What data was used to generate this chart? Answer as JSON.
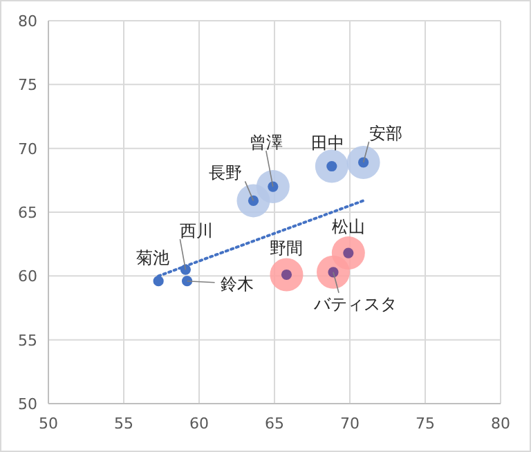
{
  "chart_data": {
    "type": "scatter",
    "xlim": [
      50,
      80
    ],
    "ylim": [
      50,
      80
    ],
    "xticks": [
      50,
      55,
      60,
      65,
      70,
      75,
      80
    ],
    "yticks": [
      50,
      55,
      60,
      65,
      70,
      75,
      80
    ],
    "grid": true,
    "marker": "circle",
    "series": [
      {
        "type": "bubble",
        "color": "#b4c7e7",
        "x": [
          63.6,
          64.9,
          68.8,
          70.9
        ],
        "values": [
          65.9,
          67.0,
          68.6,
          68.9
        ],
        "sizes": [
          1,
          1,
          1,
          1
        ]
      },
      {
        "type": "bubble",
        "color": "#ff9f9f",
        "x": [
          65.8,
          68.9,
          69.9
        ],
        "values": [
          60.1,
          60.3,
          61.8
        ],
        "sizes": [
          1,
          1,
          1
        ]
      },
      {
        "type": "line",
        "color": "#4472c4",
        "line_style": "dotted",
        "marker": "none",
        "x": [
          57.3,
          70.9
        ],
        "values": [
          60.0,
          65.9
        ]
      },
      {
        "colors": [
          "#4472c4",
          "#4472c4",
          "#4472c4",
          "#4472c4",
          "#4472c4",
          "#4472c4",
          "#4472c4",
          "#7a4f8f",
          "#7a4f8f",
          "#7a4f8f"
        ],
        "x": [
          57.3,
          59.1,
          59.2,
          63.6,
          64.9,
          68.8,
          70.9,
          65.8,
          68.9,
          69.9
        ],
        "values": [
          59.6,
          60.5,
          59.6,
          65.9,
          67.0,
          68.6,
          68.9,
          60.1,
          60.3,
          61.8
        ]
      }
    ],
    "annotations": [
      {
        "text": "菊池",
        "x": 57.3,
        "y": 59.6
      },
      {
        "text": "西川",
        "x": 59.1,
        "y": 60.5
      },
      {
        "text": "鈴木",
        "x": 59.2,
        "y": 59.6
      },
      {
        "text": "長野",
        "x": 63.6,
        "y": 65.9
      },
      {
        "text": "曾澤",
        "x": 64.9,
        "y": 67.0
      },
      {
        "text": "田中",
        "x": 68.8,
        "y": 68.6
      },
      {
        "text": "安部",
        "x": 70.9,
        "y": 68.9
      },
      {
        "text": "野間",
        "x": 65.8,
        "y": 60.1
      },
      {
        "text": "バティスタ",
        "x": 68.9,
        "y": 60.3
      },
      {
        "text": "松山",
        "x": 69.9,
        "y": 61.8
      }
    ]
  }
}
